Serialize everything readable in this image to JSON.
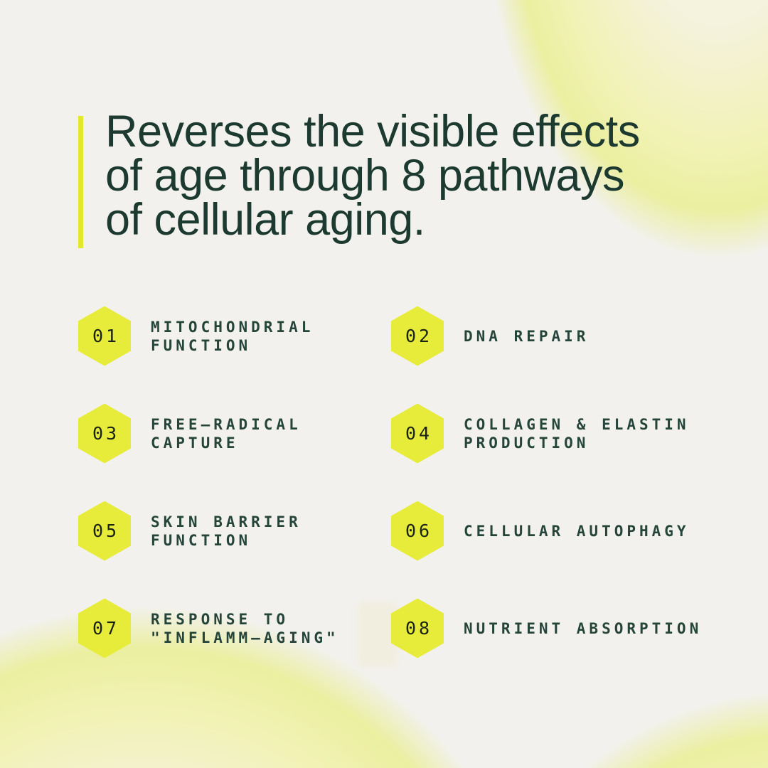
{
  "headline": {
    "lines": [
      "Reverses the visible effects",
      "of age through 8 pathways",
      "of cellular aging."
    ]
  },
  "pathways": [
    {
      "number": "01",
      "label_lines": [
        "MITOCHONDRIAL",
        "FUNCTION"
      ]
    },
    {
      "number": "02",
      "label_lines": [
        "DNA REPAIR"
      ]
    },
    {
      "number": "03",
      "label_lines": [
        "FREE–RADICAL",
        "CAPTURE"
      ]
    },
    {
      "number": "04",
      "label_lines": [
        "COLLAGEN & ELASTIN",
        "PRODUCTION"
      ]
    },
    {
      "number": "05",
      "label_lines": [
        "SKIN BARRIER",
        "FUNCTION"
      ]
    },
    {
      "number": "06",
      "label_lines": [
        "CELLULAR AUTOPHAGY"
      ]
    },
    {
      "number": "07",
      "label_lines": [
        "RESPONSE TO",
        "\"INFLAMM–AGING\""
      ]
    },
    {
      "number": "08",
      "label_lines": [
        "NUTRIENT ABSORPTION"
      ]
    }
  ],
  "colors": {
    "background": "#f2f1ee",
    "hexagon": "#e7eb39",
    "accent_bar": "#e3e829",
    "headline_text": "#1d3a30",
    "label_text": "#25453a",
    "number_text": "#1a2315",
    "corner_glow_yellow": "#ebefa0",
    "corner_glow_cream": "#f6f3e2"
  }
}
